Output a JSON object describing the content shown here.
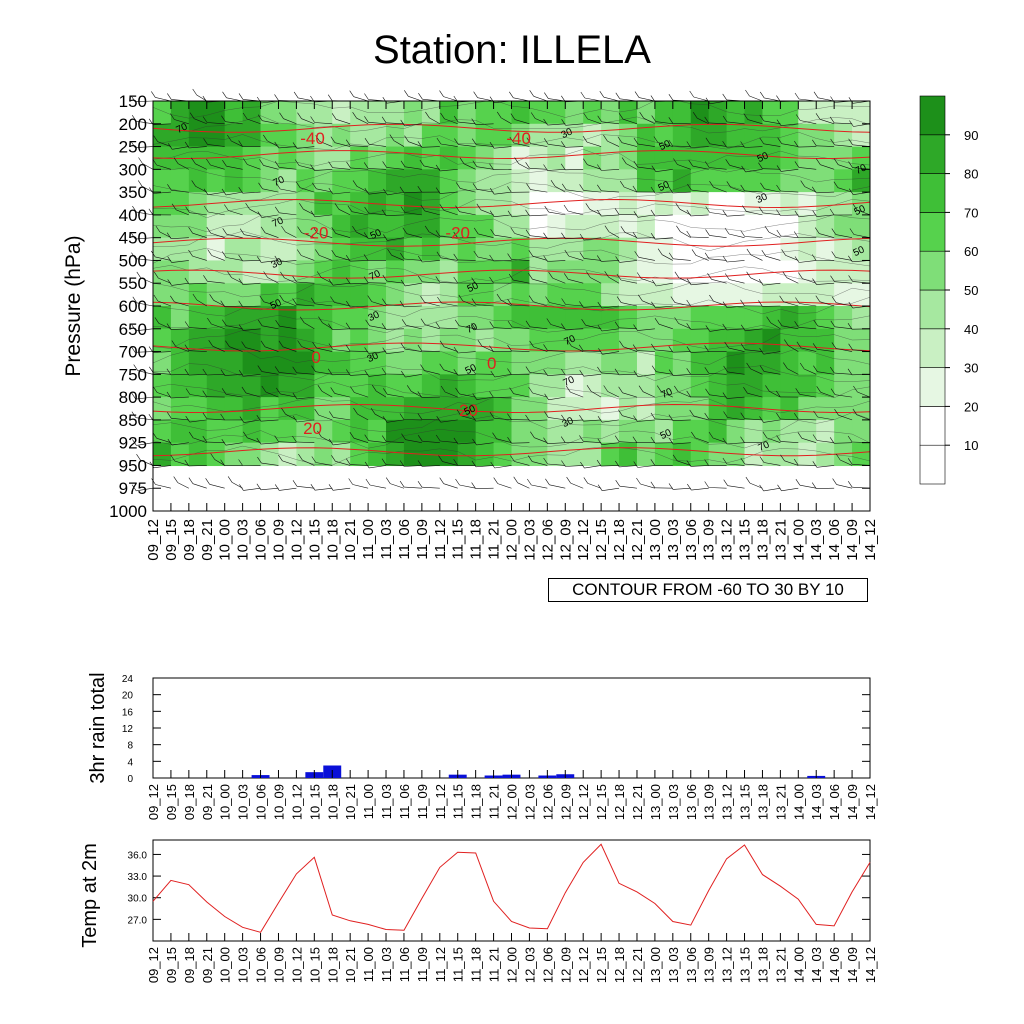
{
  "title": "Station: ILLELA",
  "contour_note": "CONTOUR FROM -60 TO 30 BY 10",
  "colors": {
    "rh_fill": [
      "#ffffff",
      "#e6f7e3",
      "#c9f0c3",
      "#a6e8a0",
      "#7fde78",
      "#56d24d",
      "#3fbf37",
      "#2ea828",
      "#1d901a"
    ],
    "temp_contour": "#e02020",
    "rain_bar": "#0a10d8",
    "temp_line": "#e02020"
  },
  "time_labels": [
    "09_12",
    "09_15",
    "09_18",
    "09_21",
    "10_00",
    "10_03",
    "10_06",
    "10_09",
    "10_12",
    "10_15",
    "10_18",
    "10_21",
    "11_00",
    "11_03",
    "11_06",
    "11_09",
    "11_12",
    "11_15",
    "11_18",
    "11_21",
    "12_00",
    "12_03",
    "12_06",
    "12_09",
    "12_12",
    "12_15",
    "12_18",
    "12_21",
    "13_00",
    "13_03",
    "13_06",
    "13_09",
    "13_12",
    "13_15",
    "13_18",
    "13_21",
    "14_00",
    "14_03",
    "14_06",
    "14_09",
    "14_12"
  ],
  "chart_data": [
    {
      "type": "heatmap",
      "ylabel": "Pressure (hPa)",
      "y_ticks": [
        "150",
        "200",
        "250",
        "300",
        "350",
        "400",
        "450",
        "500",
        "550",
        "600",
        "650",
        "700",
        "750",
        "800",
        "850",
        "925",
        "950",
        "975",
        "1000"
      ],
      "colorbar_labels": [
        "10",
        "20",
        "30",
        "40",
        "50",
        "60",
        "70",
        "80",
        "90"
      ],
      "contour_labels_red": [
        {
          "text": "-40",
          "t": 8.9,
          "p": 6.2
        },
        {
          "text": "-40",
          "t": 20.4,
          "p": 6.2
        },
        {
          "text": "-20",
          "t": 9.1,
          "p": 4.6
        },
        {
          "text": "-20",
          "t": 17.0,
          "p": 4.6
        },
        {
          "text": "0",
          "t": 9.1,
          "p": 2.5
        },
        {
          "text": "0",
          "t": 18.9,
          "p": 2.4
        },
        {
          "text": "20",
          "t": 8.9,
          "p": 1.3
        },
        {
          "text": "20",
          "t": 17.6,
          "p": 1.6
        }
      ],
      "contour_labels_black": [
        "70",
        "70",
        "50",
        "50",
        "70",
        "70",
        "70",
        "70",
        "70",
        "70",
        "70",
        "70",
        "50",
        "50",
        "50",
        "30",
        "30",
        "50",
        "30",
        "50",
        "30",
        "50",
        "50",
        "30",
        "50",
        "30",
        "50"
      ]
    },
    {
      "type": "bar",
      "ylabel": "3hr rain total",
      "y_ticks": [
        "0",
        "4",
        "8",
        "12",
        "16",
        "20",
        "24"
      ],
      "ylim": [
        0,
        24
      ],
      "values": [
        0,
        0,
        0,
        0,
        0,
        0,
        0.7,
        0,
        0,
        1.4,
        3.0,
        0,
        0,
        0,
        0,
        0,
        0,
        0.8,
        0,
        0.6,
        0.8,
        0,
        0.6,
        0.9,
        0,
        0,
        0,
        0,
        0,
        0,
        0,
        0,
        0,
        0,
        0,
        0,
        0,
        0.5,
        0,
        0,
        0
      ]
    },
    {
      "type": "line",
      "ylabel": "Temp at 2m",
      "y_ticks": [
        "27.0",
        "30.0",
        "33.0",
        "36.0"
      ],
      "ylim": [
        24.0,
        38.0
      ],
      "values": [
        29.5,
        32.4,
        31.8,
        29.4,
        27.4,
        25.9,
        25.2,
        29.3,
        33.3,
        35.6,
        27.6,
        26.8,
        26.3,
        25.6,
        25.5,
        29.9,
        34.2,
        36.3,
        36.2,
        29.5,
        26.7,
        25.8,
        25.7,
        30.7,
        34.9,
        37.4,
        32.0,
        30.8,
        29.2,
        26.7,
        26.2,
        31.0,
        35.4,
        37.3,
        33.2,
        31.6,
        29.8,
        26.3,
        26.1,
        30.8,
        34.9
      ]
    }
  ]
}
